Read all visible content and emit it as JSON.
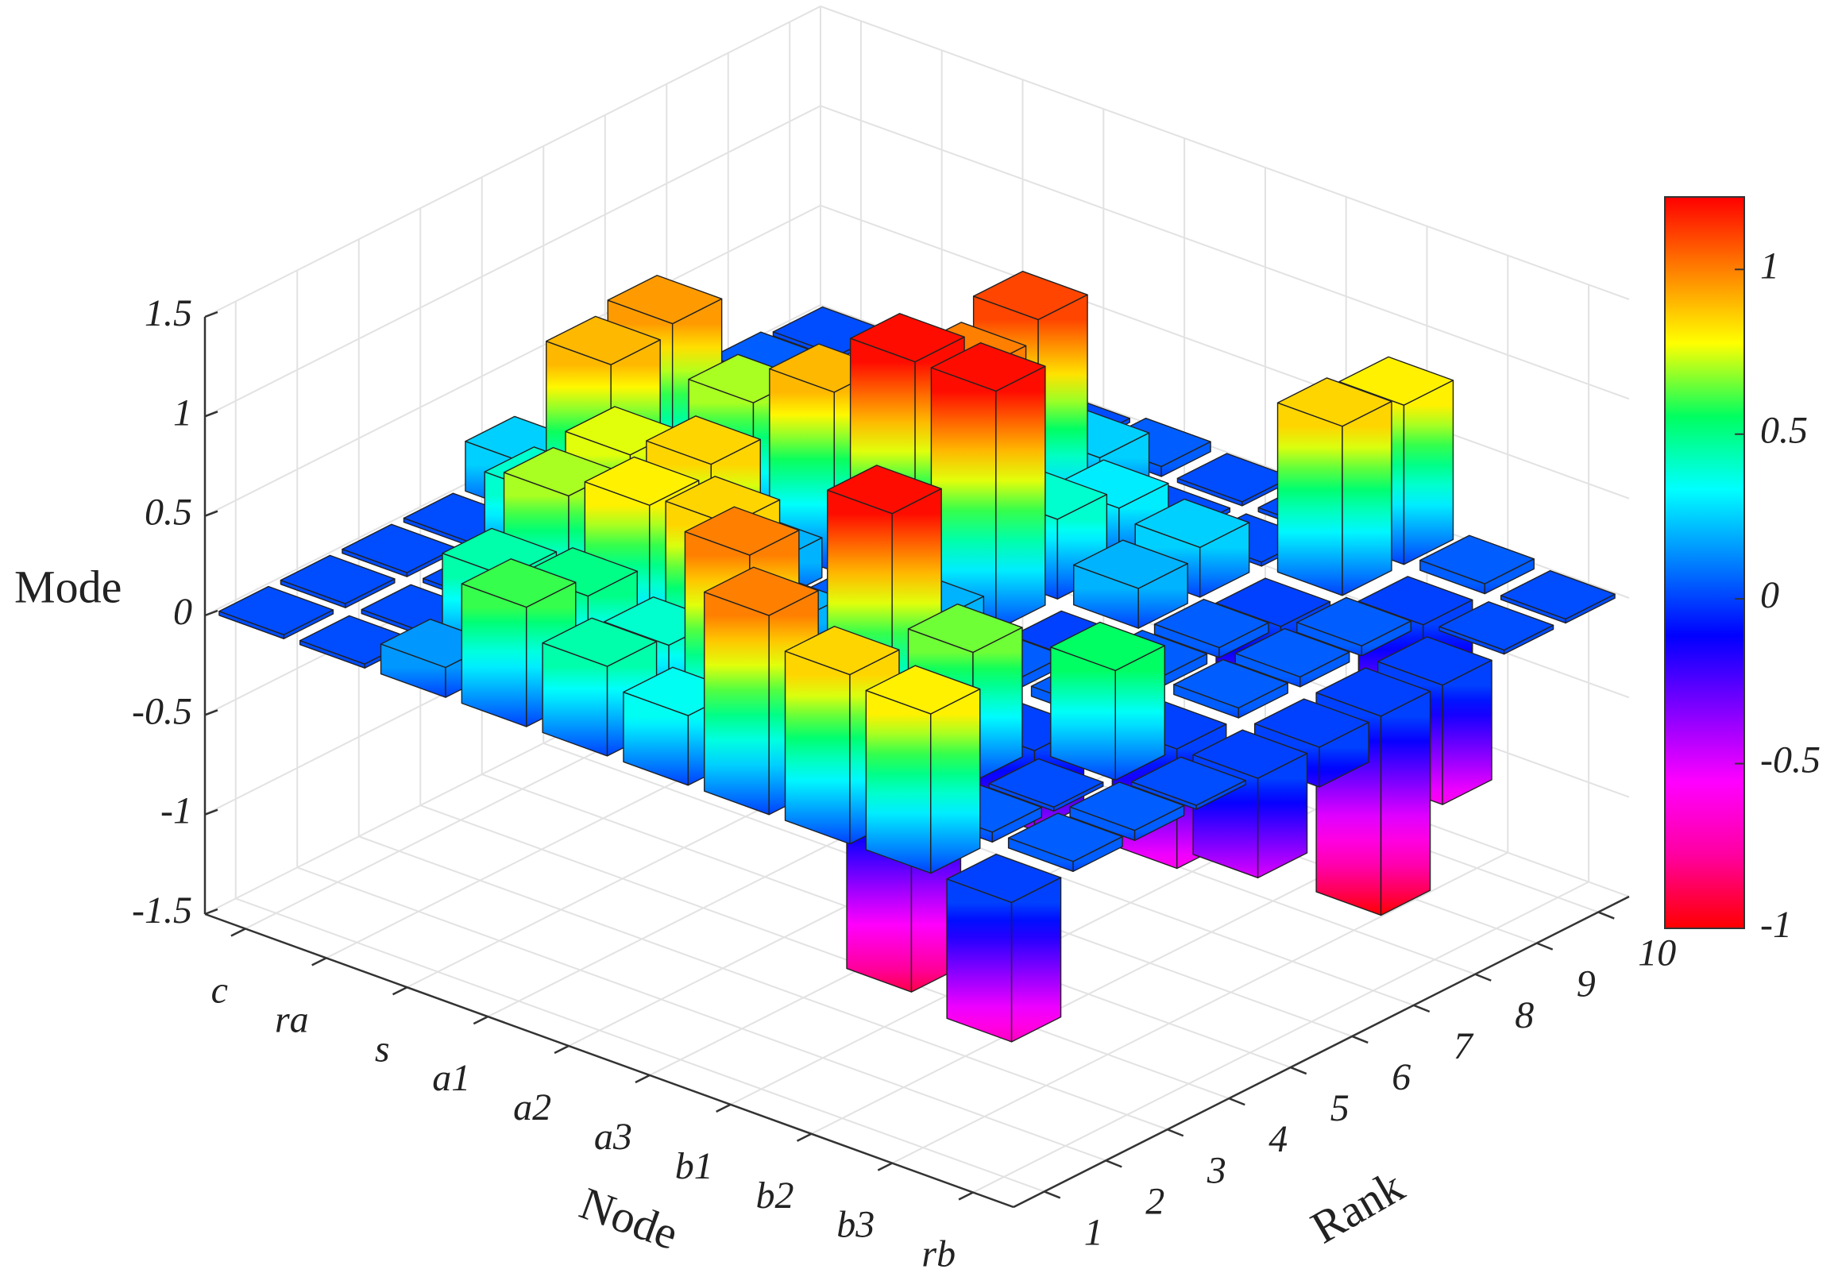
{
  "chart_data": {
    "type": "bar3",
    "xlabel": "Node",
    "ylabel": "Rank",
    "zlabel": "Mode",
    "categories": [
      "c",
      "ra",
      "s",
      "a1",
      "a2",
      "a3",
      "b1",
      "b2",
      "b3",
      "rb"
    ],
    "ranks": [
      1,
      2,
      3,
      4,
      5,
      6,
      7,
      8,
      9,
      10
    ],
    "values": [
      [
        0.02,
        0.02,
        0.02,
        0.02,
        0.25,
        0.05,
        0.3,
        0.02,
        0.05,
        0.02
      ],
      [
        0.02,
        0.02,
        0.02,
        0.4,
        0.9,
        0.95,
        0.25,
        0.1,
        0.05,
        0.02
      ],
      [
        0.15,
        0.45,
        0.7,
        0.75,
        0.1,
        0.7,
        0.1,
        0.05,
        0.02,
        0.02
      ],
      [
        0.6,
        0.5,
        0.8,
        0.85,
        0.2,
        0.9,
        0.75,
        0.05,
        0.1,
        0.02
      ],
      [
        0.45,
        0.4,
        0.85,
        0.2,
        0.05,
        1.2,
        1.0,
        1.1,
        0.25,
        0.05
      ],
      [
        0.35,
        1.0,
        0.1,
        -0.3,
        0.2,
        1.2,
        0.4,
        0.3,
        0.02,
        0.02
      ],
      [
        1.0,
        0.2,
        1.2,
        0.1,
        0.05,
        -0.1,
        0.2,
        0.25,
        0.02,
        0.02
      ],
      [
        0.85,
        -0.9,
        0.65,
        -0.4,
        0.05,
        0.05,
        0.05,
        -0.3,
        0.85,
        0.8
      ],
      [
        0.8,
        0.05,
        0.02,
        0.55,
        -0.6,
        0.05,
        0.05,
        0.05,
        -0.5,
        0.05
      ],
      [
        -0.7,
        0.05,
        0.05,
        0.02,
        -0.5,
        -0.2,
        -1.0,
        -0.6,
        0.02,
        0.02
      ]
    ],
    "zlim": [
      -1.5,
      1.5
    ],
    "zticks": [
      -1.5,
      -1,
      -0.5,
      0,
      0.5,
      1,
      1.5
    ],
    "clim": [
      -1,
      1.22
    ],
    "cticks": [
      -1,
      -0.5,
      0,
      0.5,
      1
    ],
    "colormap": [
      "#ff0000",
      "#ff00a0",
      "#ff00ff",
      "#8000ff",
      "#0000ff",
      "#0080ff",
      "#00ffff",
      "#00ff60",
      "#ffff00",
      "#ff8000",
      "#ff0000"
    ],
    "grid": true
  }
}
